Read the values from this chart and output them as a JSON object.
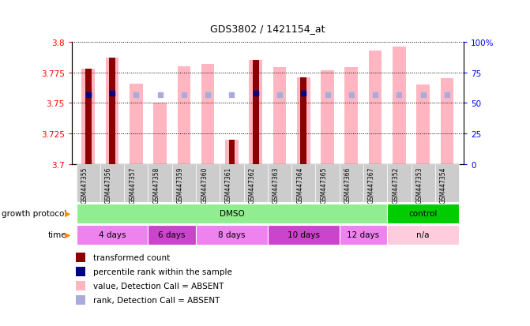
{
  "title": "GDS3802 / 1421154_at",
  "samples": [
    "GSM447355",
    "GSM447356",
    "GSM447357",
    "GSM447358",
    "GSM447359",
    "GSM447360",
    "GSM447361",
    "GSM447362",
    "GSM447363",
    "GSM447364",
    "GSM447365",
    "GSM447366",
    "GSM447367",
    "GSM447352",
    "GSM447353",
    "GSM447354"
  ],
  "ylim": [
    3.7,
    3.8
  ],
  "yticks": [
    3.7,
    3.725,
    3.75,
    3.775,
    3.8
  ],
  "ytick_labels": [
    "3.7",
    "3.725",
    "3.75",
    "3.775",
    "3.8"
  ],
  "right_yticks": [
    0,
    25,
    50,
    75,
    100
  ],
  "right_ytick_labels": [
    "0",
    "25",
    "50",
    "75",
    "100%"
  ],
  "transformed_count": [
    3.778,
    3.787,
    null,
    null,
    null,
    null,
    3.72,
    3.785,
    null,
    3.771,
    null,
    null,
    null,
    null,
    null,
    null
  ],
  "value_absent": [
    3.778,
    3.787,
    3.766,
    3.75,
    3.78,
    3.782,
    3.72,
    3.785,
    3.779,
    3.771,
    3.777,
    3.779,
    3.793,
    3.796,
    3.765,
    3.77
  ],
  "percentile_rank": [
    3.757,
    3.758,
    null,
    null,
    null,
    null,
    null,
    3.758,
    null,
    3.758,
    null,
    null,
    null,
    null,
    null,
    null
  ],
  "rank_absent": [
    3.757,
    3.758,
    3.757,
    3.757,
    3.757,
    3.757,
    3.757,
    3.758,
    3.757,
    3.758,
    3.757,
    3.757,
    3.757,
    3.757,
    3.757,
    3.757
  ],
  "growth_protocol_groups": [
    {
      "label": "DMSO",
      "start": 0,
      "end": 12,
      "color": "#90EE90"
    },
    {
      "label": "control",
      "start": 13,
      "end": 15,
      "color": "#00CC00"
    }
  ],
  "time_groups": [
    {
      "label": "4 days",
      "start": 0,
      "end": 2,
      "color": "#EE82EE"
    },
    {
      "label": "6 days",
      "start": 3,
      "end": 4,
      "color": "#CC44CC"
    },
    {
      "label": "8 days",
      "start": 5,
      "end": 7,
      "color": "#EE82EE"
    },
    {
      "label": "10 days",
      "start": 8,
      "end": 10,
      "color": "#CC44CC"
    },
    {
      "label": "12 days",
      "start": 11,
      "end": 12,
      "color": "#EE82EE"
    },
    {
      "label": "n/a",
      "start": 13,
      "end": 15,
      "color": "#FFCCDD"
    }
  ],
  "dark_red": "#8B0000",
  "light_pink": "#FFB6C1",
  "dark_blue": "#00008B",
  "light_blue": "#AAAADD",
  "label_row1": "growth protocol",
  "label_row2": "time",
  "legend_items": [
    {
      "color": "#8B0000",
      "label": "transformed count"
    },
    {
      "color": "#00008B",
      "label": "percentile rank within the sample"
    },
    {
      "color": "#FFB6C1",
      "label": "value, Detection Call = ABSENT"
    },
    {
      "color": "#AAAADD",
      "label": "rank, Detection Call = ABSENT"
    }
  ]
}
